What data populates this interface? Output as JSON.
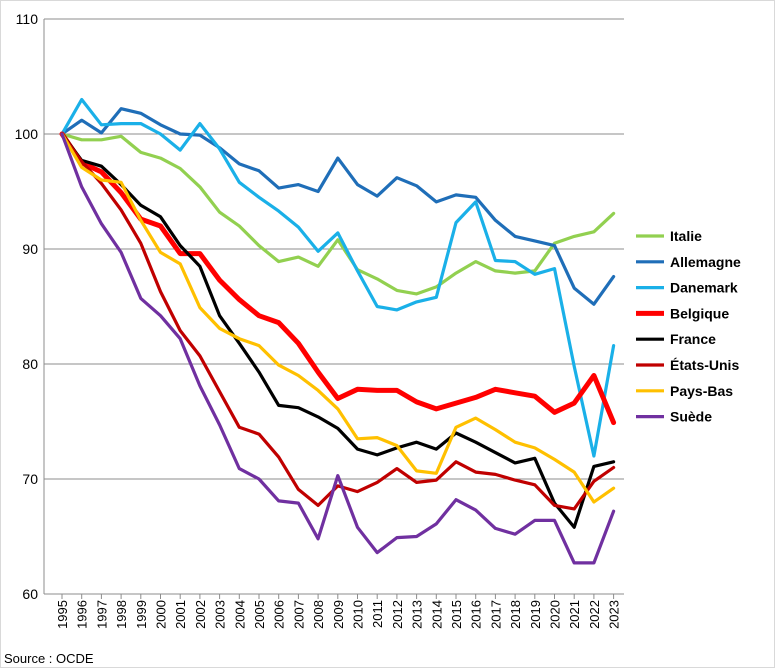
{
  "chart_data": {
    "type": "line",
    "title": "",
    "xlabel": "",
    "ylabel": "",
    "ylim": [
      60,
      110
    ],
    "yticks": [
      60,
      70,
      80,
      90,
      100,
      110
    ],
    "grid": true,
    "legend_position": "right",
    "x": [
      "1995",
      "1996",
      "1997",
      "1998",
      "1999",
      "2000",
      "2001",
      "2002",
      "2003",
      "2004",
      "2005",
      "2006",
      "2007",
      "2008",
      "2009",
      "2010",
      "2011",
      "2012",
      "2013",
      "2014",
      "2015",
      "2016",
      "2017",
      "2018",
      "2019",
      "2020",
      "2021",
      "2022",
      "2023"
    ],
    "series": [
      {
        "name": "Italie",
        "color": "#92d050",
        "thick": false,
        "values": [
          100,
          99.5,
          99.5,
          99.8,
          98.4,
          97.9,
          97.0,
          95.4,
          93.2,
          92.0,
          90.3,
          88.9,
          89.3,
          88.5,
          90.8,
          88.2,
          87.4,
          86.4,
          86.1,
          86.7,
          87.9,
          88.9,
          88.1,
          87.9,
          88.1,
          90.5,
          91.1,
          91.5,
          93.1
        ]
      },
      {
        "name": "Allemagne",
        "color": "#1f6eb8",
        "thick": false,
        "values": [
          100,
          101.2,
          100.1,
          102.2,
          101.8,
          100.8,
          100.0,
          99.9,
          98.8,
          97.4,
          96.8,
          95.3,
          95.6,
          95.0,
          97.9,
          95.6,
          94.6,
          96.2,
          95.5,
          94.1,
          94.7,
          94.5,
          92.5,
          91.1,
          90.7,
          90.3,
          86.6,
          85.2,
          87.6
        ]
      },
      {
        "name": "Danemark",
        "color": "#1ab0e8",
        "thick": false,
        "values": [
          100,
          103.0,
          100.8,
          100.9,
          100.9,
          100.0,
          98.6,
          100.9,
          98.7,
          95.8,
          94.5,
          93.3,
          91.9,
          89.8,
          91.4,
          88.1,
          85.0,
          84.7,
          85.4,
          85.8,
          92.3,
          94.1,
          89.0,
          88.9,
          87.8,
          88.3,
          79.8,
          72.0,
          81.6
        ]
      },
      {
        "name": "Belgique",
        "color": "#ff0000",
        "thick": true,
        "values": [
          100,
          97.5,
          96.7,
          94.9,
          92.6,
          92.0,
          89.6,
          89.6,
          87.3,
          85.6,
          84.2,
          83.6,
          81.8,
          79.3,
          77.0,
          77.8,
          77.7,
          77.7,
          76.7,
          76.1,
          76.6,
          77.1,
          77.8,
          77.5,
          77.2,
          75.8,
          76.6,
          79.0,
          74.9
        ]
      },
      {
        "name": "France",
        "color": "#000000",
        "thick": false,
        "values": [
          100,
          97.7,
          97.2,
          95.6,
          93.8,
          92.8,
          90.3,
          88.5,
          84.2,
          81.8,
          79.3,
          76.4,
          76.2,
          75.4,
          74.4,
          72.6,
          72.1,
          72.7,
          73.2,
          72.6,
          74.0,
          73.2,
          72.3,
          71.4,
          71.8,
          67.9,
          65.8,
          71.1,
          71.5
        ]
      },
      {
        "name": "États-Unis",
        "color": "#c00000",
        "thick": false,
        "values": [
          100,
          97.6,
          95.7,
          93.4,
          90.5,
          86.3,
          82.9,
          80.7,
          77.6,
          74.5,
          73.9,
          71.9,
          69.1,
          67.7,
          69.4,
          68.9,
          69.7,
          70.9,
          69.7,
          69.9,
          71.5,
          70.6,
          70.4,
          69.9,
          69.5,
          67.7,
          67.4,
          69.8,
          71.0
        ]
      },
      {
        "name": "Pays-Bas",
        "color": "#ffc000",
        "thick": false,
        "values": [
          100,
          97.1,
          96.0,
          95.8,
          92.5,
          89.7,
          88.7,
          84.9,
          83.1,
          82.2,
          81.6,
          79.9,
          79.0,
          77.7,
          76.1,
          73.5,
          73.6,
          72.9,
          70.7,
          70.5,
          74.5,
          75.3,
          74.3,
          73.2,
          72.7,
          71.7,
          70.6,
          68.0,
          69.2
        ]
      },
      {
        "name": "Suède",
        "color": "#7030a0",
        "thick": false,
        "values": [
          100,
          95.4,
          92.2,
          89.7,
          85.7,
          84.2,
          82.2,
          78.1,
          74.7,
          70.9,
          70.0,
          68.1,
          67.9,
          64.8,
          70.3,
          65.8,
          63.6,
          64.9,
          65.0,
          66.1,
          68.2,
          67.3,
          65.7,
          65.2,
          66.4,
          66.4,
          62.7,
          62.7,
          67.2
        ]
      }
    ]
  },
  "source": "Source : OCDE"
}
